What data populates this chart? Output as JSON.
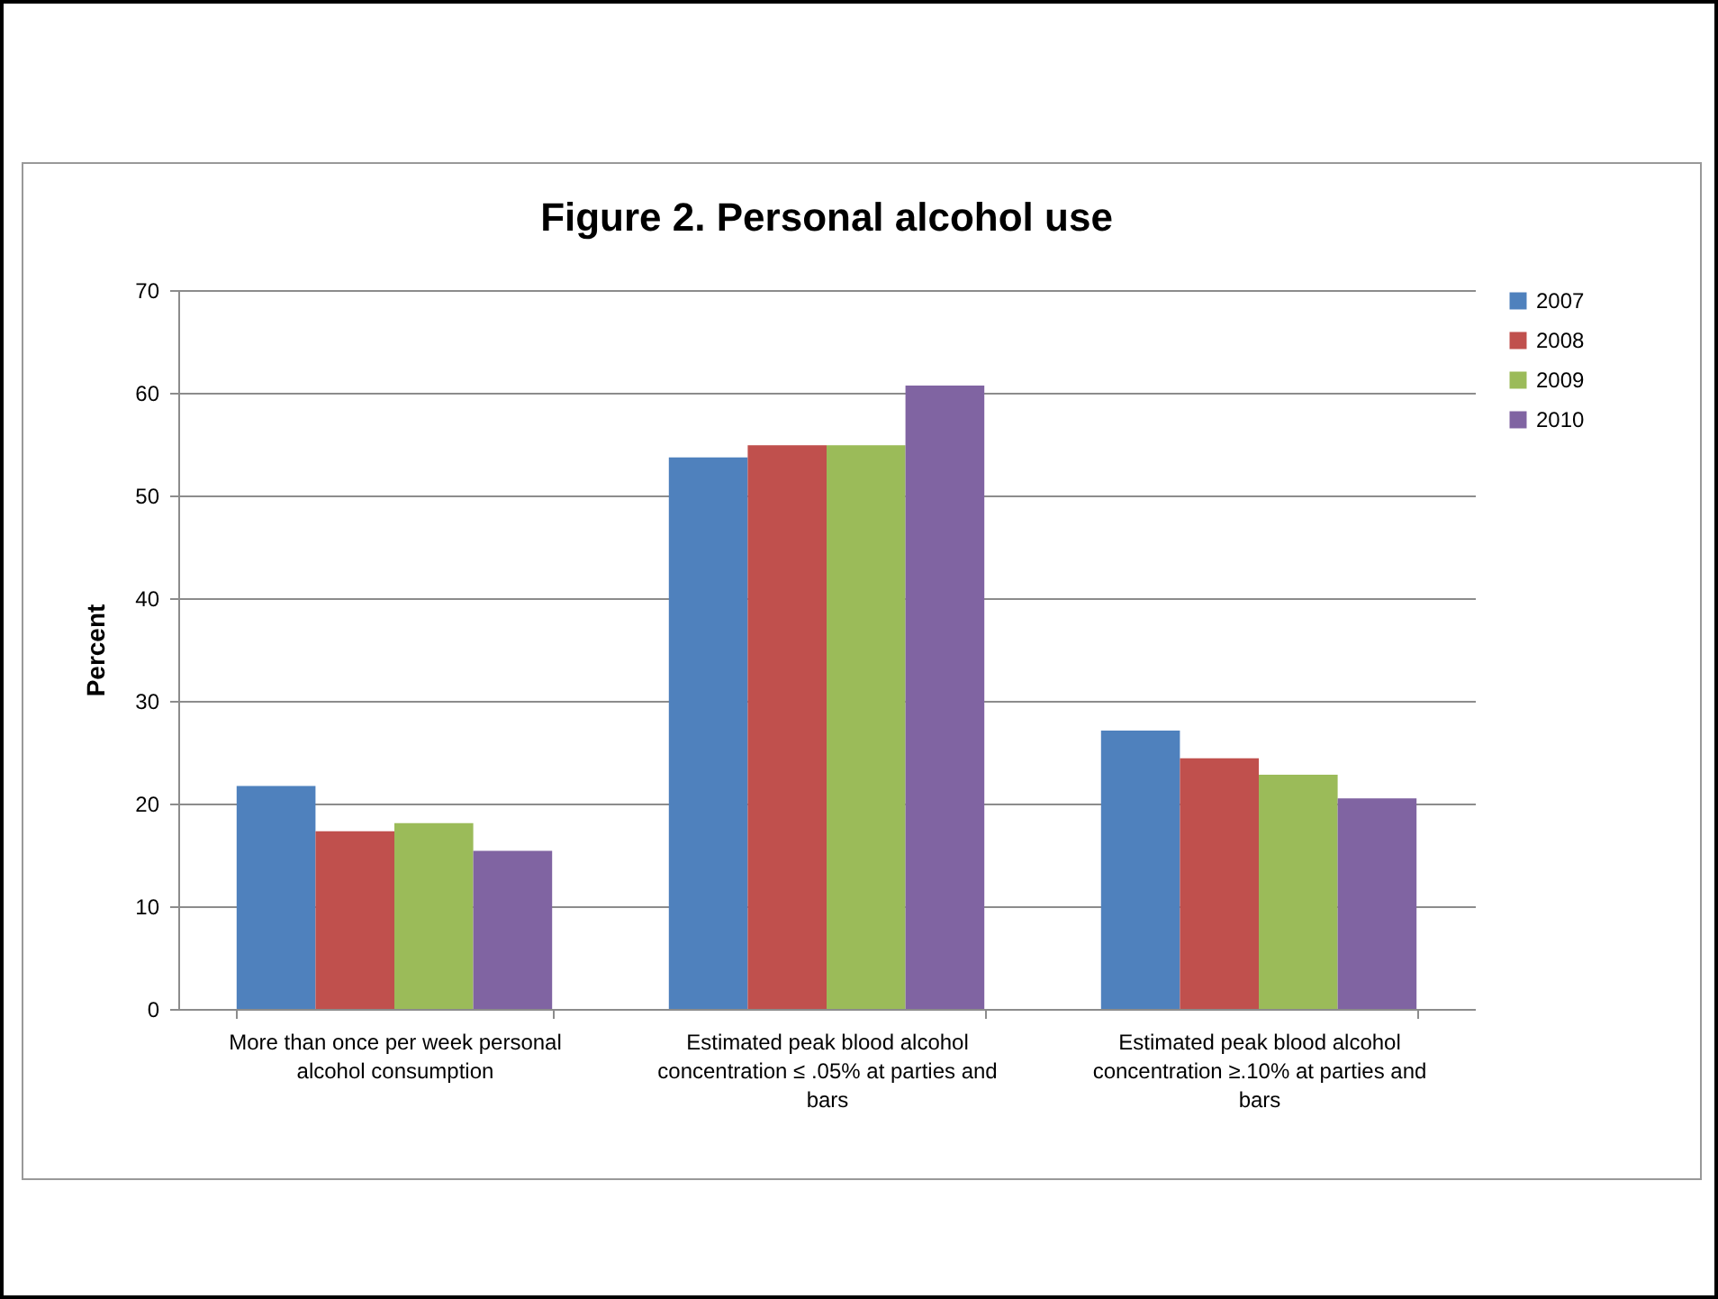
{
  "chart_data": {
    "type": "bar",
    "title": "Figure 2.  Personal alcohol use",
    "ylabel": "Percent",
    "categories": [
      "More than once per week personal alcohol consumption",
      "Estimated peak blood alcohol concentration ≤ .05% at parties and bars",
      "Estimated peak blood alcohol concentration ≥.10% at parties and bars"
    ],
    "series": [
      {
        "name": "2007",
        "color": "#4f81bd",
        "values": [
          21.7,
          53.7,
          27.1
        ]
      },
      {
        "name": "2008",
        "color": "#c0504d",
        "values": [
          17.3,
          54.9,
          24.4
        ]
      },
      {
        "name": "2009",
        "color": "#9bbb59",
        "values": [
          18.1,
          54.9,
          22.8
        ]
      },
      {
        "name": "2010",
        "color": "#8064a2",
        "values": [
          15.4,
          60.7,
          20.5
        ]
      }
    ],
    "ylim": [
      0,
      70
    ],
    "yticks": [
      0,
      10,
      20,
      30,
      40,
      50,
      60,
      70
    ],
    "grid": "y",
    "legend": "right"
  }
}
